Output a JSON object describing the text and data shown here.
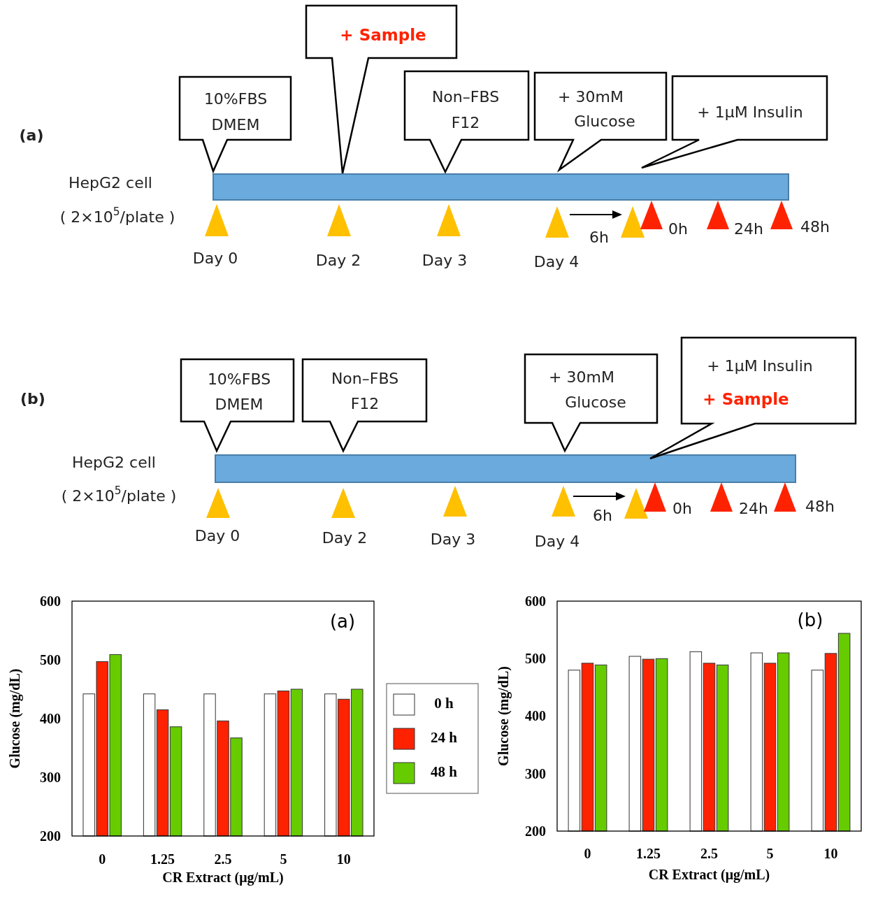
{
  "chart_data": [
    {
      "type": "other",
      "annotations": [
        "(a)",
        "10%FBS",
        "DMEM",
        "+ Sample",
        "Non–FBS",
        "F12",
        "+ 30mM",
        "Glucose",
        "+ 1μM Insulin",
        "HepG2 cell",
        "( 2×10$^{5}$/plate )",
        "Day 0",
        "Day 2",
        "Day 3",
        "Day 4",
        "6h",
        "0h",
        "24h",
        "48h"
      ]
    },
    {
      "type": "other",
      "annotations": [
        "(b)",
        "10%FBS",
        "DMEM",
        "Non–FBS",
        "F12",
        "+ 30mM",
        "Glucose",
        "+ 1μM Insulin",
        "+  Sample",
        "HepG2 cell",
        "( 2×10$^{5}$/plate )",
        "Day 0",
        "Day 2",
        "Day 3",
        "Day 4",
        "6h",
        "0h",
        "24h",
        "48h"
      ]
    },
    {
      "type": "bar",
      "xlabel": "CR Extract (μg/mL)",
      "ylabel": "Glucose  (mg/dL)",
      "annotations": [
        "(a)"
      ],
      "categories": [
        "0",
        "1.25",
        "2.5",
        "5",
        "10"
      ],
      "ylim": [
        200,
        600
      ],
      "yticks": [
        200,
        300,
        400,
        500,
        600
      ],
      "legend": "right",
      "series": [
        {
          "name": "0 h",
          "color": "#ffffff",
          "values": [
            442,
            442,
            442,
            442,
            442
          ]
        },
        {
          "name": "24 h",
          "color": "#ff2200",
          "values": [
            497,
            415,
            396,
            447,
            433
          ]
        },
        {
          "name": "48 h",
          "color": "#66cc00",
          "values": [
            509,
            386,
            367,
            450,
            450
          ]
        }
      ]
    },
    {
      "type": "bar",
      "xlabel": "CR Extract  (μg/mL)",
      "ylabel": "Glucose  (mg/dL)",
      "annotations": [
        "(b)"
      ],
      "categories": [
        "0",
        "1.25",
        "2.5",
        "5",
        "10"
      ],
      "ylim": [
        200,
        600
      ],
      "yticks": [
        200,
        300,
        400,
        500,
        600
      ],
      "series": [
        {
          "color": "#ffffff",
          "values": [
            480,
            504,
            512,
            510,
            480
          ]
        },
        {
          "color": "#ff2200",
          "values": [
            492,
            499,
            492,
            492,
            509
          ]
        },
        {
          "color": "#66cc00",
          "values": [
            489,
            500,
            489,
            510,
            544
          ]
        }
      ]
    }
  ]
}
